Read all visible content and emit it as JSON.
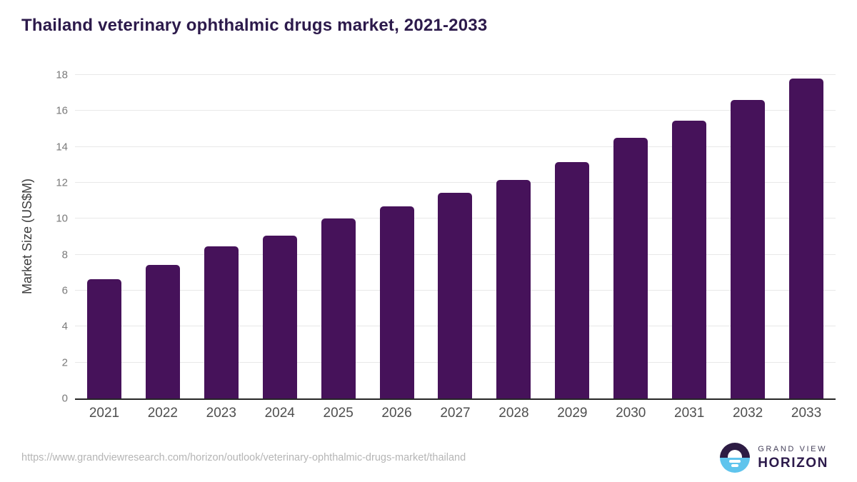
{
  "header": {
    "title": "Thailand veterinary ophthalmic drugs market, 2021-2033"
  },
  "chart_data": {
    "type": "bar",
    "title": "Thailand veterinary ophthalmic drugs market, 2021-2033",
    "categories": [
      "2021",
      "2022",
      "2023",
      "2024",
      "2025",
      "2026",
      "2027",
      "2028",
      "2029",
      "2030",
      "2031",
      "2032",
      "2033"
    ],
    "values": [
      6.65,
      7.45,
      8.45,
      9.05,
      10.0,
      10.7,
      11.45,
      12.15,
      13.15,
      14.5,
      15.45,
      16.6,
      17.8
    ],
    "xlabel": "",
    "ylabel": "Market Size (US$M)",
    "ylim": [
      0,
      18
    ],
    "ytick_step": 2,
    "grid": true,
    "legend": "none",
    "bar_color": "#46125a"
  },
  "footer": {
    "source_url": "https://www.grandviewresearch.com/horizon/outlook/veterinary-ophthalmic-drugs-market/thailand",
    "logo": {
      "line1": "GRAND VIEW",
      "line2": "HORIZON"
    }
  },
  "colors": {
    "title_text": "#2c1a4b",
    "bar": "#46125a",
    "gridline": "#e8e8e8",
    "axis_line": "#262626",
    "y_tick_text": "#7a7a7a",
    "x_tick_text": "#4f4f4f",
    "url_text": "#b5b5b5",
    "logo_purple": "#2d1c44",
    "logo_blue": "#5fc4ed"
  }
}
